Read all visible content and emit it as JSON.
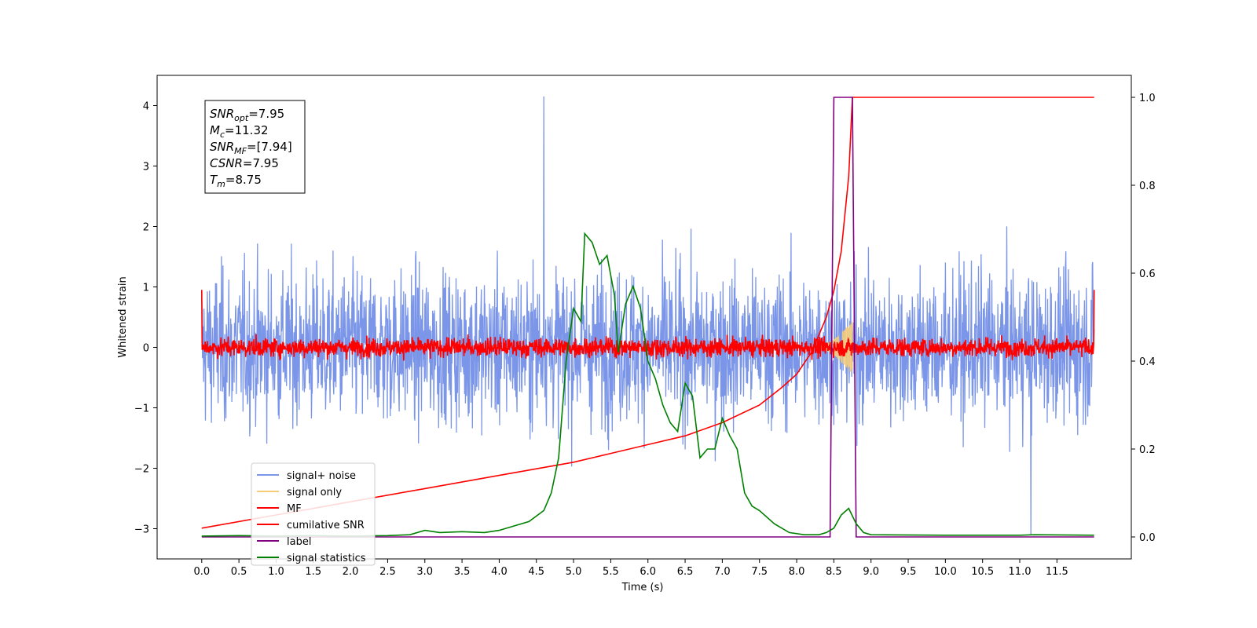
{
  "chart_data": {
    "type": "line",
    "xlabel": "Time (s)",
    "ylabel": "Whitened strain",
    "xlim": [
      -0.6,
      12.5
    ],
    "ylim": [
      -3.5,
      4.5
    ],
    "y2lim": [
      -0.05,
      1.05
    ],
    "x_ticks": [
      "0.0",
      "0.5",
      "1.0",
      "1.5",
      "2.0",
      "2.5",
      "3.0",
      "3.5",
      "4.0",
      "4.5",
      "5.0",
      "5.5",
      "6.0",
      "6.5",
      "7.0",
      "7.5",
      "8.0",
      "8.5",
      "9.0",
      "9.5",
      "10.0",
      "10.5",
      "11.0",
      "11.5"
    ],
    "y_ticks": [
      "4",
      "3",
      "2",
      "1",
      "0",
      "−1",
      "−2",
      "−3"
    ],
    "y2_ticks": [
      "1.0",
      "0.8",
      "0.6",
      "0.4",
      "0.2",
      "0.0"
    ],
    "grid": false,
    "legend": {
      "placement": "lower-left",
      "entries": [
        {
          "label": "signal+ noise",
          "color": "#7b96e8"
        },
        {
          "label": "signal only",
          "color": "#f5cc7a"
        },
        {
          "label": "MF",
          "color": "#ff0000"
        },
        {
          "label": "cumilative SNR",
          "color": "#ff0000"
        },
        {
          "label": "label",
          "color": "#800080"
        },
        {
          "label": "signal statistics",
          "color": "#008000"
        }
      ]
    },
    "annotation": [
      {
        "name": "SNR",
        "sub": "opt",
        "value": "=7.95"
      },
      {
        "name": "M",
        "sub": "c",
        "value": "=11.32"
      },
      {
        "name": "SNR",
        "sub": "MF",
        "value": "=[7.94]"
      },
      {
        "name": "CSNR",
        "sub": "",
        "value": "=7.95"
      },
      {
        "name": "T",
        "sub": "m",
        "value": "=8.75"
      }
    ],
    "series": [
      {
        "name": "signal+ noise",
        "axis": "left",
        "color": "#7b96e8",
        "kind": "noise",
        "x_range": [
          0,
          12
        ],
        "band": [
          -1.6,
          1.6
        ],
        "peaks": {
          "max": 4.15,
          "min": -3.1
        }
      },
      {
        "name": "signal only",
        "axis": "left",
        "color": "#f5cc7a",
        "kind": "chirp",
        "x_range": [
          8.2,
          8.75
        ],
        "amplitude_max": 0.45
      },
      {
        "name": "MF",
        "axis": "left",
        "color": "#ff0000",
        "kind": "noise",
        "x_range": [
          0,
          12
        ],
        "band": [
          -0.2,
          0.2
        ]
      },
      {
        "name": "cumilative SNR",
        "axis": "right",
        "color": "#ff0000",
        "x": [
          0,
          1,
          2,
          3,
          4,
          5,
          5.5,
          6,
          6.5,
          7,
          7.5,
          7.8,
          8.0,
          8.2,
          8.4,
          8.5,
          8.6,
          8.7,
          8.75,
          12
        ],
        "y": [
          0.02,
          0.05,
          0.08,
          0.11,
          0.14,
          0.17,
          0.19,
          0.21,
          0.23,
          0.26,
          0.3,
          0.34,
          0.37,
          0.42,
          0.5,
          0.56,
          0.65,
          0.82,
          1.0,
          1.0
        ]
      },
      {
        "name": "label",
        "axis": "right",
        "color": "#800080",
        "x": [
          0,
          8.45,
          8.5,
          8.75,
          8.8,
          12
        ],
        "y": [
          0,
          0,
          1,
          1,
          0,
          0
        ]
      },
      {
        "name": "signal statistics",
        "axis": "right",
        "color": "#008000",
        "x": [
          0,
          0.5,
          1,
          1.5,
          2,
          2.5,
          2.8,
          3.0,
          3.2,
          3.5,
          3.8,
          4.0,
          4.2,
          4.4,
          4.6,
          4.7,
          4.8,
          4.9,
          5.0,
          5.1,
          5.15,
          5.25,
          5.35,
          5.45,
          5.55,
          5.6,
          5.7,
          5.8,
          5.9,
          6.0,
          6.1,
          6.2,
          6.3,
          6.4,
          6.5,
          6.6,
          6.7,
          6.8,
          6.9,
          7.0,
          7.1,
          7.2,
          7.3,
          7.4,
          7.5,
          7.7,
          7.9,
          8.1,
          8.3,
          8.4,
          8.5,
          8.6,
          8.7,
          8.8,
          8.9,
          9.0,
          10,
          11,
          11.2,
          12
        ],
        "y": [
          0.002,
          0.003,
          0.002,
          0.003,
          0.002,
          0.003,
          0.005,
          0.015,
          0.01,
          0.012,
          0.01,
          0.015,
          0.025,
          0.035,
          0.06,
          0.1,
          0.18,
          0.4,
          0.52,
          0.49,
          0.69,
          0.67,
          0.62,
          0.64,
          0.55,
          0.42,
          0.53,
          0.57,
          0.52,
          0.4,
          0.36,
          0.3,
          0.26,
          0.24,
          0.35,
          0.32,
          0.18,
          0.2,
          0.2,
          0.27,
          0.23,
          0.2,
          0.1,
          0.07,
          0.06,
          0.03,
          0.01,
          0.005,
          0.005,
          0.01,
          0.02,
          0.05,
          0.065,
          0.03,
          0.01,
          0.005,
          0.004,
          0.004,
          0.005,
          0.004
        ]
      }
    ]
  }
}
